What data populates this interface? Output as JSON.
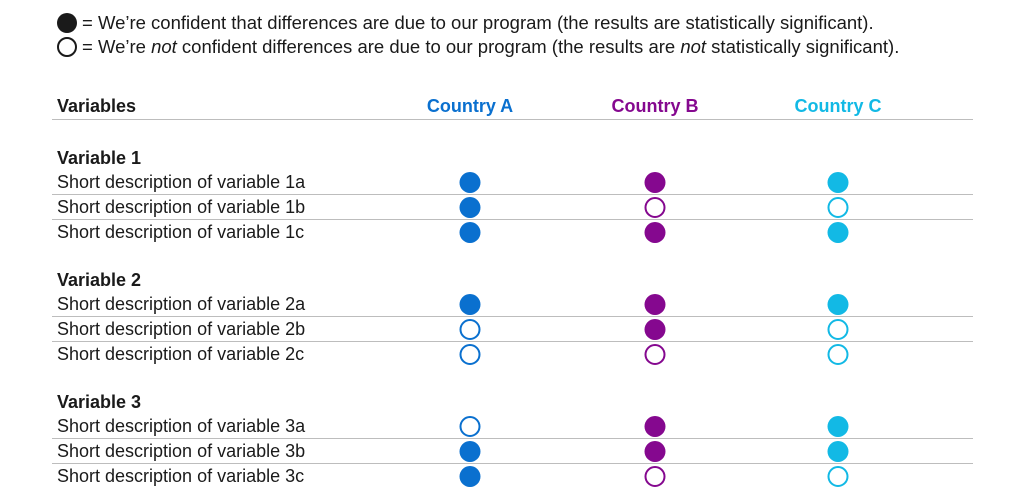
{
  "legend": {
    "filled": {
      "prefix": "= We’re confident that differences are due to our program (the results are statistically significant).",
      "icon": "filled-circle-icon"
    },
    "hollow": {
      "part1": "= We’re ",
      "em1": "not",
      "part2": " confident differences are due to our program (the results are ",
      "em2": "not",
      "part3": " statistically significant).",
      "icon": "hollow-circle-icon"
    }
  },
  "header": {
    "variables": "Variables"
  },
  "colors": {
    "text": "#1a1a1a",
    "rule": "#bdbdbd"
  },
  "chart_data": {
    "type": "table",
    "columns": [
      {
        "name": "Country A",
        "color": "#0a70cf"
      },
      {
        "name": "Country B",
        "color": "#85088f"
      },
      {
        "name": "Country C",
        "color": "#12b9e5"
      }
    ],
    "value_legend": {
      "true": "statistically significant (filled circle)",
      "false": "not statistically significant (hollow circle)"
    },
    "groups": [
      {
        "title": "Variable 1",
        "rows": [
          {
            "label": "Short description of variable 1a",
            "values": [
              true,
              true,
              true
            ]
          },
          {
            "label": "Short description of variable 1b",
            "values": [
              true,
              false,
              false
            ]
          },
          {
            "label": "Short description of variable 1c",
            "values": [
              true,
              true,
              true
            ]
          }
        ]
      },
      {
        "title": "Variable 2",
        "rows": [
          {
            "label": "Short description of variable 2a",
            "values": [
              true,
              true,
              true
            ]
          },
          {
            "label": "Short description of variable 2b",
            "values": [
              false,
              true,
              false
            ]
          },
          {
            "label": "Short description of variable 2c",
            "values": [
              false,
              false,
              false
            ]
          }
        ]
      },
      {
        "title": "Variable 3",
        "rows": [
          {
            "label": "Short description of variable 3a",
            "values": [
              false,
              true,
              true
            ]
          },
          {
            "label": "Short description of variable 3b",
            "values": [
              true,
              true,
              true
            ]
          },
          {
            "label": "Short description of variable 3c",
            "values": [
              true,
              false,
              false
            ]
          }
        ]
      }
    ]
  }
}
